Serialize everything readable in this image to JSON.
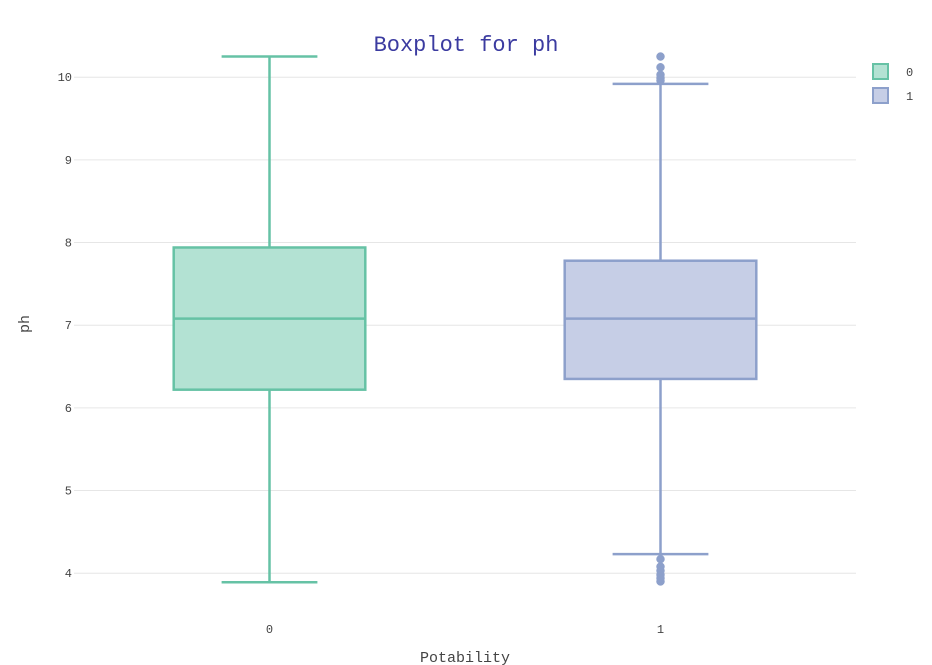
{
  "chart_data": {
    "type": "box",
    "title": "Boxplot for ph",
    "xlabel": "Potability",
    "ylabel": "ph",
    "categories": [
      "0",
      "1"
    ],
    "ylim": [
      3.7,
      10.45
    ],
    "yticks": [
      4,
      5,
      6,
      7,
      8,
      9,
      10
    ],
    "grid": true,
    "legend_position": "top-right",
    "series": [
      {
        "name": "0",
        "category": "0",
        "color": "#66c2a5",
        "fill": "#b3e2d3",
        "min": 3.89,
        "q1": 6.22,
        "median": 7.08,
        "q3": 7.94,
        "max": 10.25,
        "outliers": []
      },
      {
        "name": "1",
        "category": "1",
        "color": "#8da0cb",
        "fill": "#c6cee6",
        "min": 4.23,
        "q1": 6.35,
        "median": 7.08,
        "q3": 7.78,
        "max": 9.92,
        "outliers": [
          10.25,
          10.12,
          10.03,
          9.99,
          9.96,
          4.17,
          4.08,
          4.03,
          3.98,
          3.94,
          3.9
        ]
      }
    ],
    "title_color": "#3b3ba0",
    "grid_color": "#e6e6e6"
  }
}
